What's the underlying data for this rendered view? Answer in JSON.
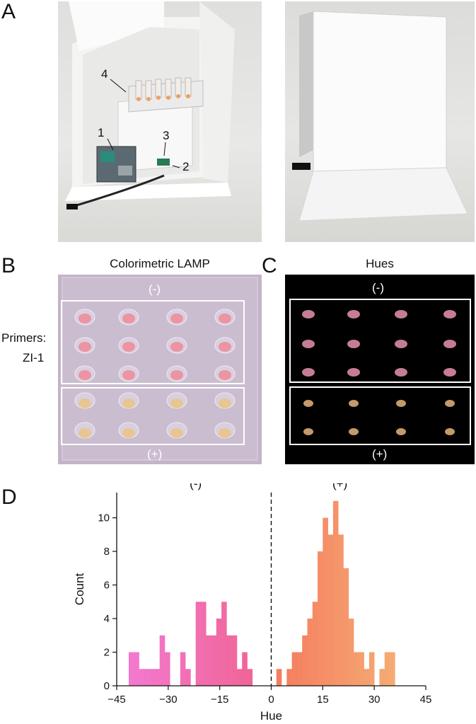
{
  "panels": {
    "a": {
      "letter": "A",
      "callouts": [
        "1",
        "2",
        "3",
        "4"
      ]
    },
    "b": {
      "letter": "B",
      "title": "Colorimetric LAMP",
      "side_label_1": "Primers:",
      "side_label_2": "ZI-1",
      "neg_label": "(-)",
      "pos_label": "(+)"
    },
    "c": {
      "letter": "C",
      "title": "Hues",
      "neg_label": "(-)",
      "pos_label": "(+)"
    },
    "d": {
      "letter": "D"
    }
  },
  "colors": {
    "hist_low": "#f37bd5",
    "hist_mid_neg": "#f0628e",
    "hist_mid_pos": "#f47a5e",
    "hist_high": "#f6b779",
    "neg_spot": "#c57d96",
    "pos_spot": "#c49a6c",
    "plate_bg": "#c5b6cb"
  },
  "chart_data": {
    "type": "bar",
    "title": "",
    "xlabel": "Hue",
    "ylabel": "Count",
    "xlim": [
      -45,
      45
    ],
    "ylim": [
      0,
      11.5
    ],
    "xticks": [
      -45,
      -30,
      -15,
      0,
      15,
      30,
      45
    ],
    "yticks": [
      0,
      2,
      4,
      6,
      8,
      10
    ],
    "bin_width": 1.5,
    "bins": [
      {
        "x0": -41.5,
        "count": 2
      },
      {
        "x0": -40.0,
        "count": 2
      },
      {
        "x0": -38.5,
        "count": 1
      },
      {
        "x0": -37.0,
        "count": 1
      },
      {
        "x0": -35.5,
        "count": 1
      },
      {
        "x0": -34.0,
        "count": 1
      },
      {
        "x0": -32.5,
        "count": 3
      },
      {
        "x0": -31.0,
        "count": 2
      },
      {
        "x0": -26.5,
        "count": 2
      },
      {
        "x0": -25.0,
        "count": 1
      },
      {
        "x0": -22.0,
        "count": 5
      },
      {
        "x0": -20.5,
        "count": 5
      },
      {
        "x0": -19.0,
        "count": 3
      },
      {
        "x0": -17.5,
        "count": 3
      },
      {
        "x0": -16.0,
        "count": 4
      },
      {
        "x0": -14.5,
        "count": 5
      },
      {
        "x0": -13.0,
        "count": 3
      },
      {
        "x0": -11.5,
        "count": 3
      },
      {
        "x0": -10.0,
        "count": 1
      },
      {
        "x0": -8.5,
        "count": 2
      },
      {
        "x0": -7.0,
        "count": 1
      },
      {
        "x0": 1.5,
        "count": 1
      },
      {
        "x0": 4.5,
        "count": 1
      },
      {
        "x0": 6.0,
        "count": 2
      },
      {
        "x0": 7.5,
        "count": 2
      },
      {
        "x0": 9.0,
        "count": 3
      },
      {
        "x0": 10.5,
        "count": 4
      },
      {
        "x0": 12.0,
        "count": 5
      },
      {
        "x0": 13.5,
        "count": 8
      },
      {
        "x0": 15.0,
        "count": 10
      },
      {
        "x0": 16.5,
        "count": 9
      },
      {
        "x0": 18.0,
        "count": 11
      },
      {
        "x0": 19.5,
        "count": 9
      },
      {
        "x0": 21.0,
        "count": 7
      },
      {
        "x0": 22.5,
        "count": 4
      },
      {
        "x0": 24.0,
        "count": 2
      },
      {
        "x0": 25.5,
        "count": 2
      },
      {
        "x0": 27.0,
        "count": 1
      },
      {
        "x0": 28.5,
        "count": 2
      },
      {
        "x0": 31.5,
        "count": 1
      },
      {
        "x0": 33.0,
        "count": 2
      },
      {
        "x0": 34.5,
        "count": 2
      }
    ],
    "annotations": [
      {
        "text": "(-)",
        "x": -22,
        "y": 11.8
      },
      {
        "text": "***",
        "x": 0,
        "y": 12.3
      },
      {
        "text": "(+)",
        "x": 20,
        "y": 11.8
      }
    ],
    "vline": {
      "x": 0,
      "style": "dashed"
    },
    "grid": false,
    "legend": "none"
  }
}
